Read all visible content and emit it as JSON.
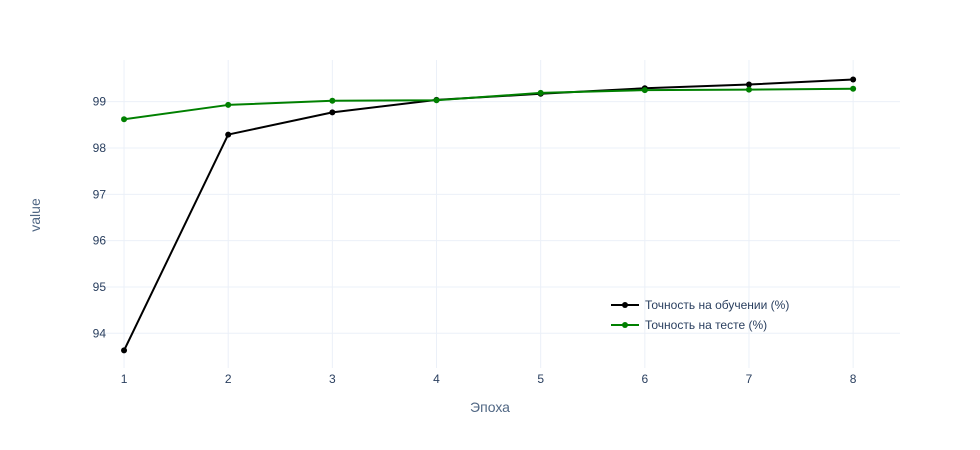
{
  "chart_data": {
    "type": "line",
    "xlabel": "Эпоха",
    "ylabel": "value",
    "x": [
      1,
      2,
      3,
      4,
      5,
      6,
      7,
      8
    ],
    "xticks": [
      "1",
      "2",
      "3",
      "4",
      "5",
      "6",
      "7",
      "8"
    ],
    "xlim": [
      0.75,
      8.45
    ],
    "ylim": [
      93.25,
      99.9
    ],
    "yticks": [
      "94",
      "95",
      "96",
      "97",
      "98",
      "99"
    ],
    "grid": true,
    "legend_position": "bottom-right",
    "series": [
      {
        "name": "Точность на обучении (%)",
        "color": "#000000",
        "values": [
          93.63,
          98.29,
          98.77,
          99.04,
          99.17,
          99.29,
          99.37,
          99.48
        ]
      },
      {
        "name": "Точность на тесте (%)",
        "color": "#008000",
        "values": [
          98.62,
          98.93,
          99.02,
          99.03,
          99.19,
          99.25,
          99.26,
          99.28
        ]
      }
    ]
  }
}
